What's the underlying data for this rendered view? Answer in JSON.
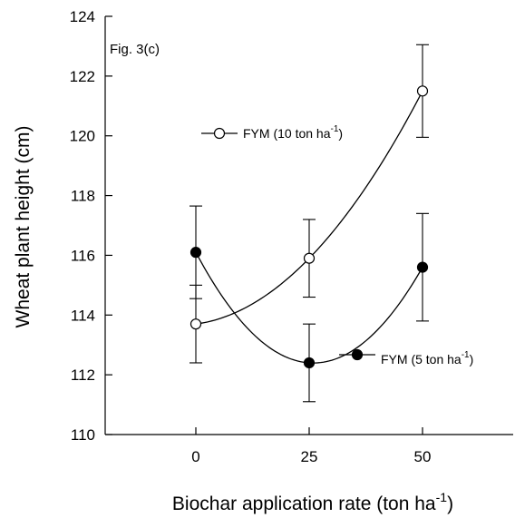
{
  "chart_data": {
    "type": "line",
    "annotation": "Fig. 3(c)",
    "xlabel_main": "Biochar application rate (ton ha",
    "xlabel_sup": "-1",
    "xlabel_end": ")",
    "ylabel": "Wheat plant height (cm)",
    "x": [
      0,
      25,
      50
    ],
    "x_tick_labels": [
      "0",
      "25",
      "50"
    ],
    "xlim": [
      -20,
      70
    ],
    "ylim": [
      110,
      124
    ],
    "y_ticks": [
      110,
      112,
      114,
      116,
      118,
      120,
      122,
      124
    ],
    "y_tick_labels": [
      "110",
      "112",
      "114",
      "116",
      "118",
      "120",
      "122",
      "124"
    ],
    "series": [
      {
        "legend_main": "FYM (10 ton ha",
        "legend_sup": "-1",
        "legend_end": ")",
        "marker": "open-circle",
        "values": [
          113.7,
          115.9,
          121.5
        ],
        "error": [
          1.3,
          1.3,
          1.55
        ]
      },
      {
        "legend_main": "FYM (5 ton ha",
        "legend_sup": "-1",
        "legend_end": ")",
        "marker": "filled-circle",
        "values": [
          116.1,
          112.4,
          115.6
        ],
        "error": [
          1.55,
          1.3,
          1.8
        ]
      }
    ],
    "grid": false
  }
}
